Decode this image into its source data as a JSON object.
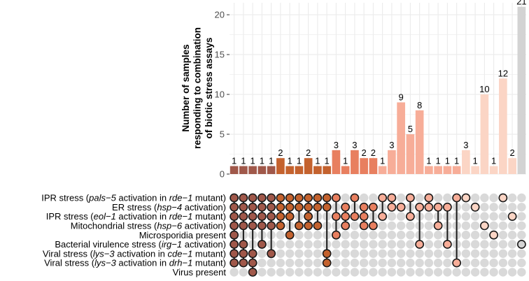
{
  "chart_data": {
    "type": "bar",
    "subtype": "upset",
    "ylabel_lines": [
      "Number of samples",
      "responding to combination",
      "of biotic stress assays"
    ],
    "ylim": [
      0,
      21.5
    ],
    "yticks": [
      0,
      5,
      10,
      15,
      20
    ],
    "grid": true,
    "sets": [
      [
        {
          "t": "IPR stress ("
        },
        {
          "t": "pals−5",
          "i": true
        },
        {
          "t": " activation in "
        },
        {
          "t": "rde−1",
          "i": true
        },
        {
          "t": " mutant)"
        }
      ],
      [
        {
          "t": "ER stress ("
        },
        {
          "t": "hsp−4",
          "i": true
        },
        {
          "t": " activation)"
        }
      ],
      [
        {
          "t": "IPR stress ("
        },
        {
          "t": "eol−1",
          "i": true
        },
        {
          "t": " activation in "
        },
        {
          "t": "rde−1",
          "i": true
        },
        {
          "t": " mutant)"
        }
      ],
      [
        {
          "t": "Mitochondrial stress ("
        },
        {
          "t": "hsp−6",
          "i": true
        },
        {
          "t": " activation)"
        }
      ],
      [
        {
          "t": "Microsporidia present"
        }
      ],
      [
        {
          "t": "Bacterial virulence stress ("
        },
        {
          "t": "irg−1",
          "i": true
        },
        {
          "t": " activation)"
        }
      ],
      [
        {
          "t": "Viral stress ("
        },
        {
          "t": "lys−3",
          "i": true
        },
        {
          "t": " activation in "
        },
        {
          "t": "cde−1",
          "i": true
        },
        {
          "t": " mutant)"
        }
      ],
      [
        {
          "t": "Viral stress ("
        },
        {
          "t": "lys−3",
          "i": true
        },
        {
          "t": " activation in "
        },
        {
          "t": "drh−1",
          "i": true
        },
        {
          "t": " mutant)"
        }
      ],
      [
        {
          "t": "Virus present"
        }
      ]
    ],
    "values": [
      1,
      1,
      1,
      1,
      1,
      2,
      1,
      1,
      2,
      1,
      1,
      3,
      1,
      3,
      2,
      2,
      1,
      3,
      9,
      5,
      8,
      1,
      1,
      1,
      1,
      3,
      1,
      10,
      1,
      12,
      2,
      21
    ],
    "bar_colors": [
      "#a0584a",
      "#a0584a",
      "#a0584a",
      "#a0584a",
      "#a0584a",
      "#c4622e",
      "#c4622e",
      "#c4622e",
      "#c4622e",
      "#c4622e",
      "#c4622e",
      "#e87f5f",
      "#e87f5f",
      "#e87f5f",
      "#e87f5f",
      "#e87f5f",
      "#f7ad98",
      "#f7ad98",
      "#f7ad98",
      "#f7ad98",
      "#f7ad98",
      "#f7ad98",
      "#f7ad98",
      "#f7ad98",
      "#f7ad98",
      "#fbd5c5",
      "#fbd5c5",
      "#fbd5c5",
      "#fbd5c5",
      "#fbd5c5",
      "#fbd5c5",
      "#d3d3d3"
    ],
    "combinations": [
      [
        0,
        1,
        2,
        3,
        4,
        5,
        6,
        7
      ],
      [
        0,
        1,
        2,
        3,
        5,
        6,
        7
      ],
      [
        0,
        1,
        2,
        3,
        6,
        7,
        8
      ],
      [
        0,
        1,
        2,
        3,
        5
      ],
      [
        0,
        1,
        2,
        3,
        6
      ],
      [
        0,
        1,
        2,
        3
      ],
      [
        0,
        1,
        2,
        4
      ],
      [
        0,
        1,
        3
      ],
      [
        0,
        1,
        2,
        3
      ],
      [
        0,
        1,
        3
      ],
      [
        0,
        1,
        6,
        7
      ],
      [
        0,
        2,
        4
      ],
      [
        1,
        2,
        3
      ],
      [
        0,
        2
      ],
      [
        1,
        2,
        3
      ],
      [
        1,
        3
      ],
      [
        0,
        2
      ],
      [
        0,
        1
      ],
      [
        1
      ],
      [
        0,
        2
      ],
      [
        1,
        5
      ],
      [
        0,
        1
      ],
      [
        1,
        3
      ],
      [
        1,
        5
      ],
      [
        0,
        7
      ],
      [
        0
      ],
      [
        1
      ],
      [
        3
      ],
      [
        4
      ],
      [
        0
      ],
      [
        2
      ],
      [
        5
      ]
    ]
  },
  "style": {
    "dot_inactive": "#d9d9d9",
    "dot_outline": "#1a1a1a",
    "line_color": "#1a1a1a",
    "grid_color": "#ebebeb",
    "axis_color": "#333333",
    "label_color": "#000000"
  }
}
